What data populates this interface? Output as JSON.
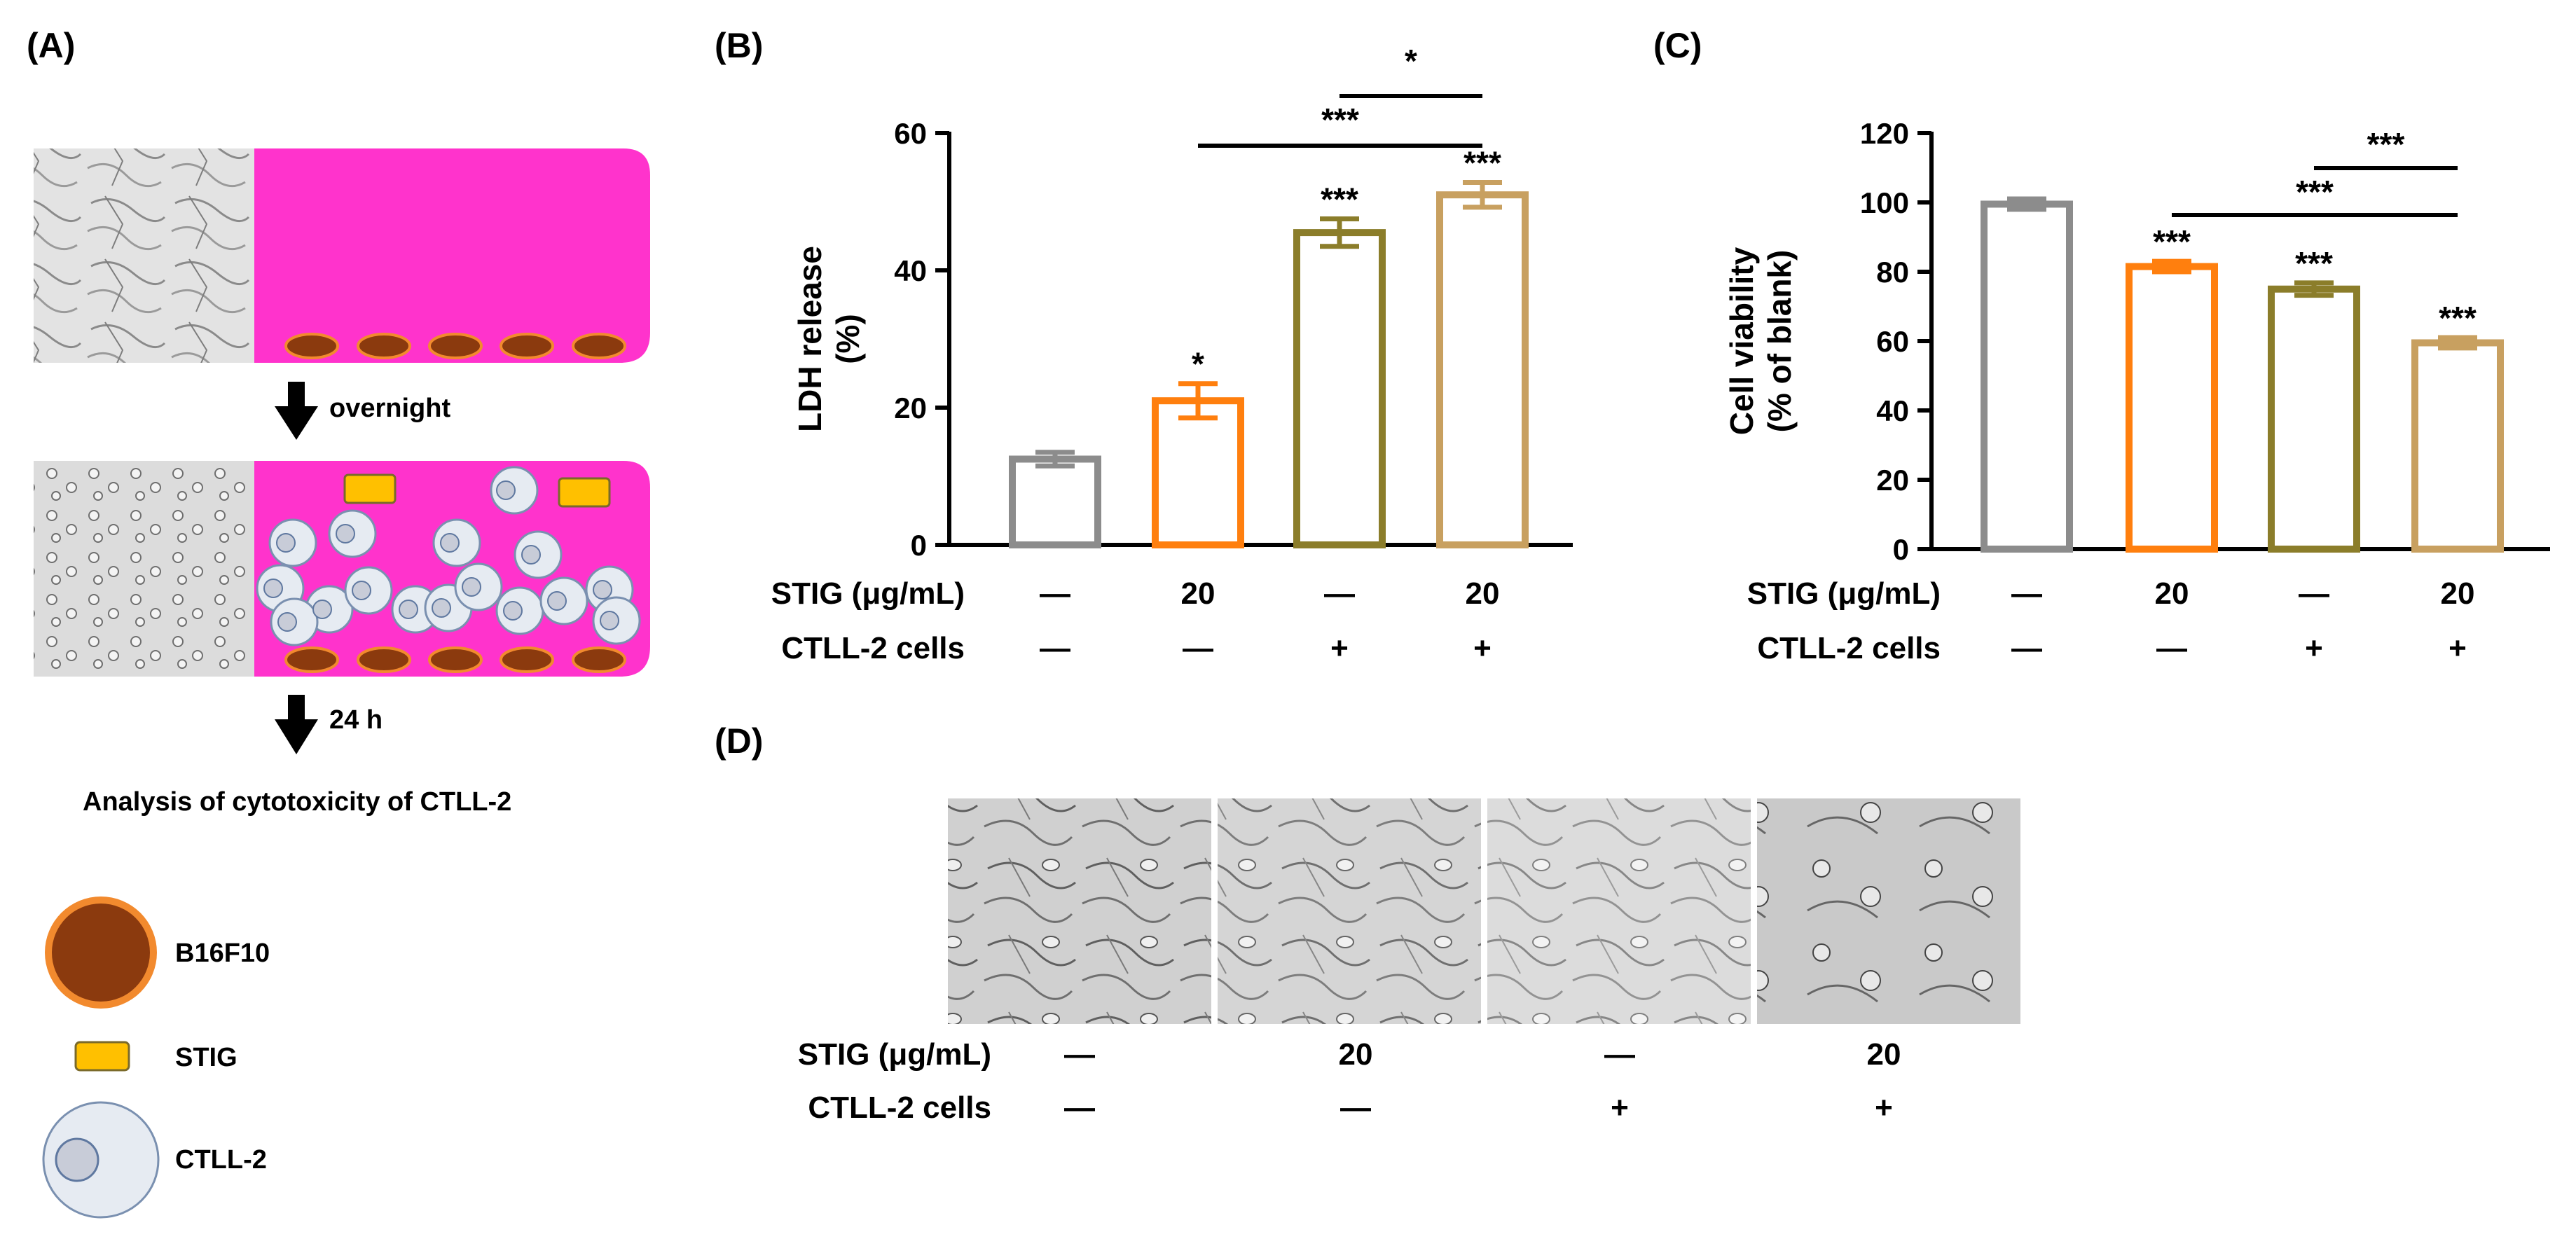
{
  "panel_labels": {
    "a": "(A)",
    "b": "(B)",
    "c": "(C)",
    "d": "(D)"
  },
  "schematic": {
    "step1_label": "overnight",
    "step2_label": "24 h",
    "analysis_label": "Analysis of cytotoxicity of CTLL-2",
    "legend": [
      {
        "label": "B16F10",
        "icon": "tumor-cell-icon",
        "color": "#8b3a0e"
      },
      {
        "label": "STIG",
        "icon": "stig-particle-icon",
        "color": "#ffc000"
      },
      {
        "label": "CTLL-2",
        "icon": "t-cell-icon",
        "color": "#e6ebf2"
      }
    ],
    "medium_color": "#ff33cc"
  },
  "row_labels": {
    "stig": "STIG (μg/mL)",
    "cells": "CTLL-2 cells"
  },
  "conditions": {
    "stig": [
      "—",
      "20",
      "—",
      "20"
    ],
    "cells": [
      "—",
      "—",
      "+",
      "+"
    ]
  },
  "chart_data": [
    {
      "type": "bar",
      "ylabel": "LDH release\n(%)",
      "ylim": [
        0,
        60
      ],
      "yticks": [
        "0",
        "20",
        "40",
        "60"
      ],
      "values": [
        12.5,
        21,
        45.5,
        51
      ],
      "errors": [
        1.0,
        2.5,
        2.0,
        1.8
      ],
      "colors": [
        "#8c8c8c",
        "#ff7f0e",
        "#8b7d2a",
        "#c8a060"
      ],
      "bar_labels": [
        "",
        "*",
        "***",
        "***"
      ],
      "comparisons": [
        {
          "from": 1,
          "to": 3,
          "label": "***"
        },
        {
          "from": 2,
          "to": 3,
          "label": "*"
        }
      ]
    },
    {
      "type": "bar",
      "ylabel": "Cell viability\n(% of blank)",
      "ylim": [
        0,
        120
      ],
      "yticks": [
        "0",
        "20",
        "40",
        "60",
        "80",
        "100",
        "120"
      ],
      "values": [
        99.5,
        81.5,
        75,
        59.5
      ],
      "errors": [
        1.5,
        1.5,
        1.8,
        1.5
      ],
      "colors": [
        "#8c8c8c",
        "#ff7f0e",
        "#8b7d2a",
        "#c8a060"
      ],
      "bar_labels": [
        "",
        "***",
        "***",
        "***"
      ],
      "comparisons": [
        {
          "from": 1,
          "to": 3,
          "label": "***"
        },
        {
          "from": 2,
          "to": 3,
          "label": "***"
        }
      ]
    }
  ]
}
